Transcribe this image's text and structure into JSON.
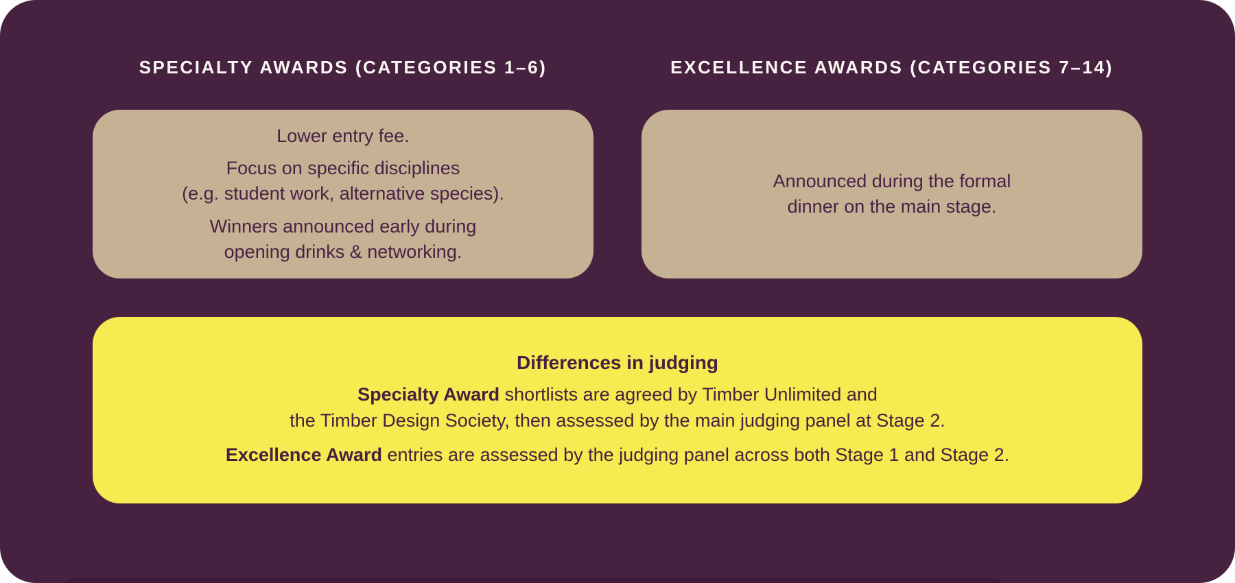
{
  "headers": {
    "specialty": "SPECIALTY AWARDS (CATEGORIES 1–6)",
    "excellence": "EXCELLENCE AWARDS (CATEGORIES 7–14)"
  },
  "specialty_box": {
    "paragraphs": [
      "Lower entry fee.",
      "Focus on specific disciplines\n(e.g. student work, alternative species).",
      "Winners announced early during\nopening drinks & networking."
    ]
  },
  "excellence_box": {
    "text": "Announced during the formal\ndinner on the main stage."
  },
  "judging_box": {
    "title": "Differences in judging",
    "items": [
      {
        "bold": "Specialty Award",
        "rest": " shortlists are agreed by Timber Unlimited and\nthe Timber Design Society, then assessed by the main judging panel at Stage 2."
      },
      {
        "bold": "Excellence Award",
        "rest": " entries are assessed by the judging panel across both Stage 1 and Stage 2."
      }
    ]
  },
  "colors": {
    "card_background": "#472140",
    "info_box_background": "#c5b294",
    "judging_box_background": "#f6eb51",
    "heading_text": "#faf7f2",
    "body_text": "#4a2145",
    "next_card_peek": "#3b1b35"
  }
}
